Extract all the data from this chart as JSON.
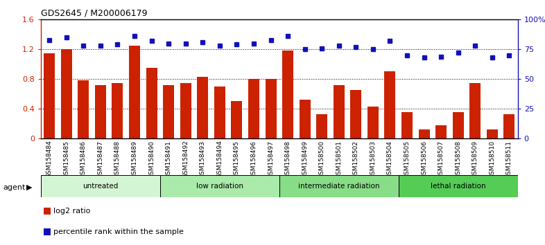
{
  "title": "GDS2645 / M200006179",
  "samples": [
    "GSM158484",
    "GSM158485",
    "GSM158486",
    "GSM158487",
    "GSM158488",
    "GSM158489",
    "GSM158490",
    "GSM158491",
    "GSM158492",
    "GSM158493",
    "GSM158494",
    "GSM158495",
    "GSM158496",
    "GSM158497",
    "GSM158498",
    "GSM158499",
    "GSM158500",
    "GSM158501",
    "GSM158502",
    "GSM158503",
    "GSM158504",
    "GSM158505",
    "GSM158506",
    "GSM158507",
    "GSM158508",
    "GSM158509",
    "GSM158510",
    "GSM158511"
  ],
  "log2_ratio": [
    1.15,
    1.2,
    0.78,
    0.72,
    0.75,
    1.25,
    0.95,
    0.72,
    0.75,
    0.83,
    0.7,
    0.5,
    0.8,
    0.8,
    1.18,
    0.52,
    0.33,
    0.72,
    0.65,
    0.43,
    0.9,
    0.35,
    0.12,
    0.18,
    0.35,
    0.75,
    0.12,
    0.33
  ],
  "percentile_rank": [
    83,
    85,
    78,
    78,
    79,
    86,
    82,
    80,
    80,
    81,
    78,
    79,
    80,
    83,
    86,
    75,
    76,
    78,
    77,
    75,
    82,
    70,
    68,
    69,
    72,
    78,
    68,
    70
  ],
  "groups": [
    {
      "label": "untreated",
      "start": 0,
      "end": 7,
      "color": "#d4f5d4"
    },
    {
      "label": "low radiation",
      "start": 7,
      "end": 14,
      "color": "#aaeaaa"
    },
    {
      "label": "intermediate radiation",
      "start": 14,
      "end": 21,
      "color": "#88dd88"
    },
    {
      "label": "lethal radiation",
      "start": 21,
      "end": 28,
      "color": "#55cc55"
    }
  ],
  "bar_color": "#cc2200",
  "dot_color": "#1111bb",
  "ylim_left": [
    0,
    1.6
  ],
  "ylim_right": [
    0,
    100
  ],
  "yticks_left": [
    0.0,
    0.4,
    0.8,
    1.2,
    1.6
  ],
  "ytick_labels_left": [
    "0",
    "0.4",
    "0.8",
    "1.2",
    "1.6"
  ],
  "yticks_right": [
    0,
    25,
    50,
    75,
    100
  ],
  "ytick_labels_right": [
    "0",
    "25",
    "50",
    "75",
    "100%"
  ],
  "background_color": "#ffffff",
  "legend_red": "log2 ratio",
  "legend_blue": "percentile rank within the sample",
  "agent_label": "agent"
}
